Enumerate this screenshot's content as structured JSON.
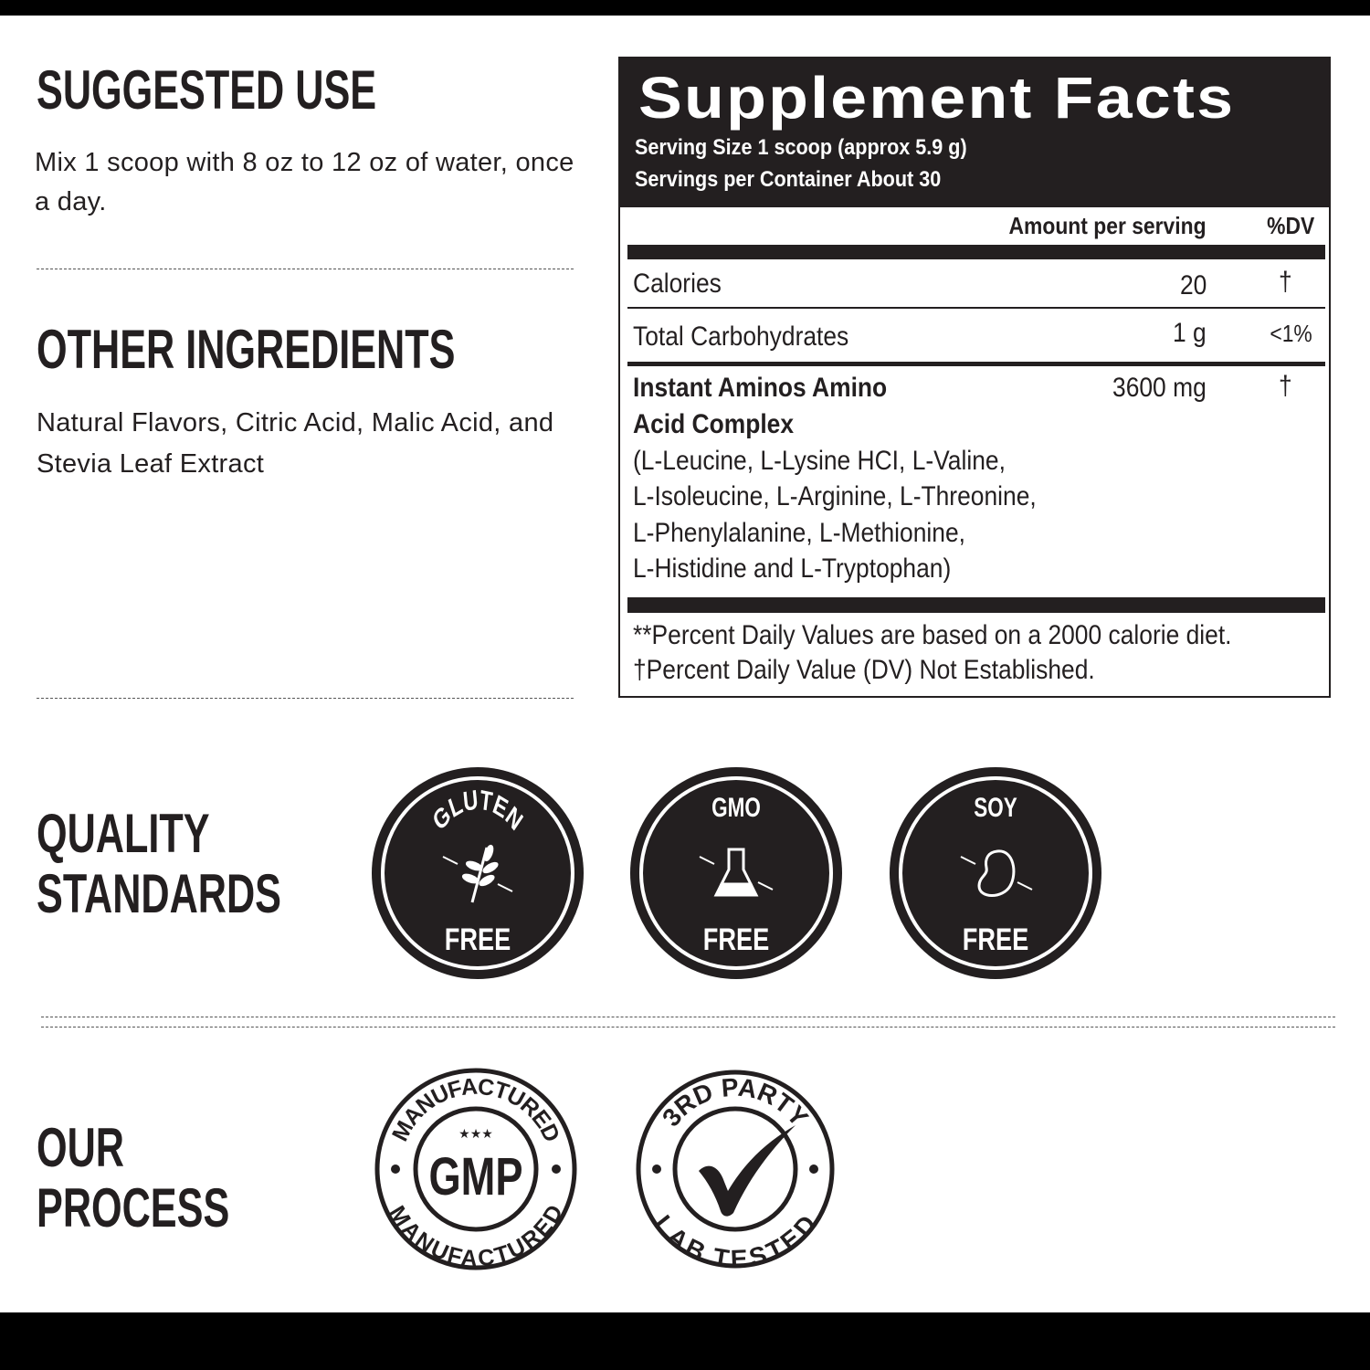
{
  "suggested_use": {
    "heading": "SUGGESTED USE",
    "text": "Mix 1 scoop with 8 oz to 12 oz of water, once a day."
  },
  "other_ingredients": {
    "heading": "OTHER INGREDIENTS",
    "text": "Natural Flavors, Citric Acid, Malic Acid, and Stevia Leaf Extract"
  },
  "supplement_facts": {
    "title": "Supplement Facts",
    "serving_size": "Serving Size 1 scoop (approx 5.9 g)",
    "servings_per_container": "Servings per Container About 30",
    "col_amount": "Amount per serving",
    "col_dv": "%DV",
    "rows": [
      {
        "name": "Calories",
        "amount": "20",
        "dv": "†"
      },
      {
        "name": "Total Carbohydrates",
        "amount": "1 g",
        "dv": "<1%"
      },
      {
        "name_line1": "Instant Aminos Amino",
        "name_line2": "Acid Complex",
        "amount": "3600 mg",
        "dv": "†",
        "detail": [
          "(L-Leucine, L-Lysine HCI, L-Valine,",
          "L-Isoleucine,  L-Arginine, L-Threonine,",
          "L-Phenylalanine, L-Methionine,",
          "L-Histidine and  L-Tryptophan)"
        ]
      }
    ],
    "footnote1": "**Percent Daily Values are based on a 2000 calorie diet.",
    "footnote2": "†Percent Daily Value (DV) Not Established."
  },
  "quality_standards": {
    "heading_line1": "QUALITY",
    "heading_line2": "STANDARDS",
    "badges": [
      {
        "top": "GLUTEN",
        "bottom": "FREE",
        "icon": "wheat-icon"
      },
      {
        "top": "GMO",
        "bottom": "FREE",
        "icon": "flask-icon"
      },
      {
        "top": "SOY",
        "bottom": "FREE",
        "icon": "bean-icon"
      }
    ]
  },
  "our_process": {
    "heading_line1": "OUR",
    "heading_line2": "PROCESS",
    "badges": [
      {
        "top": "MANUFACTURED",
        "center": "GMP",
        "bottom": "MANUFACTURED",
        "icon": "stars-icon"
      },
      {
        "top": "3RD PARTY",
        "bottom": "LAB TESTED",
        "icon": "checkmark-icon"
      }
    ]
  },
  "colors": {
    "ink": "#231f20",
    "background": "#ffffff"
  }
}
